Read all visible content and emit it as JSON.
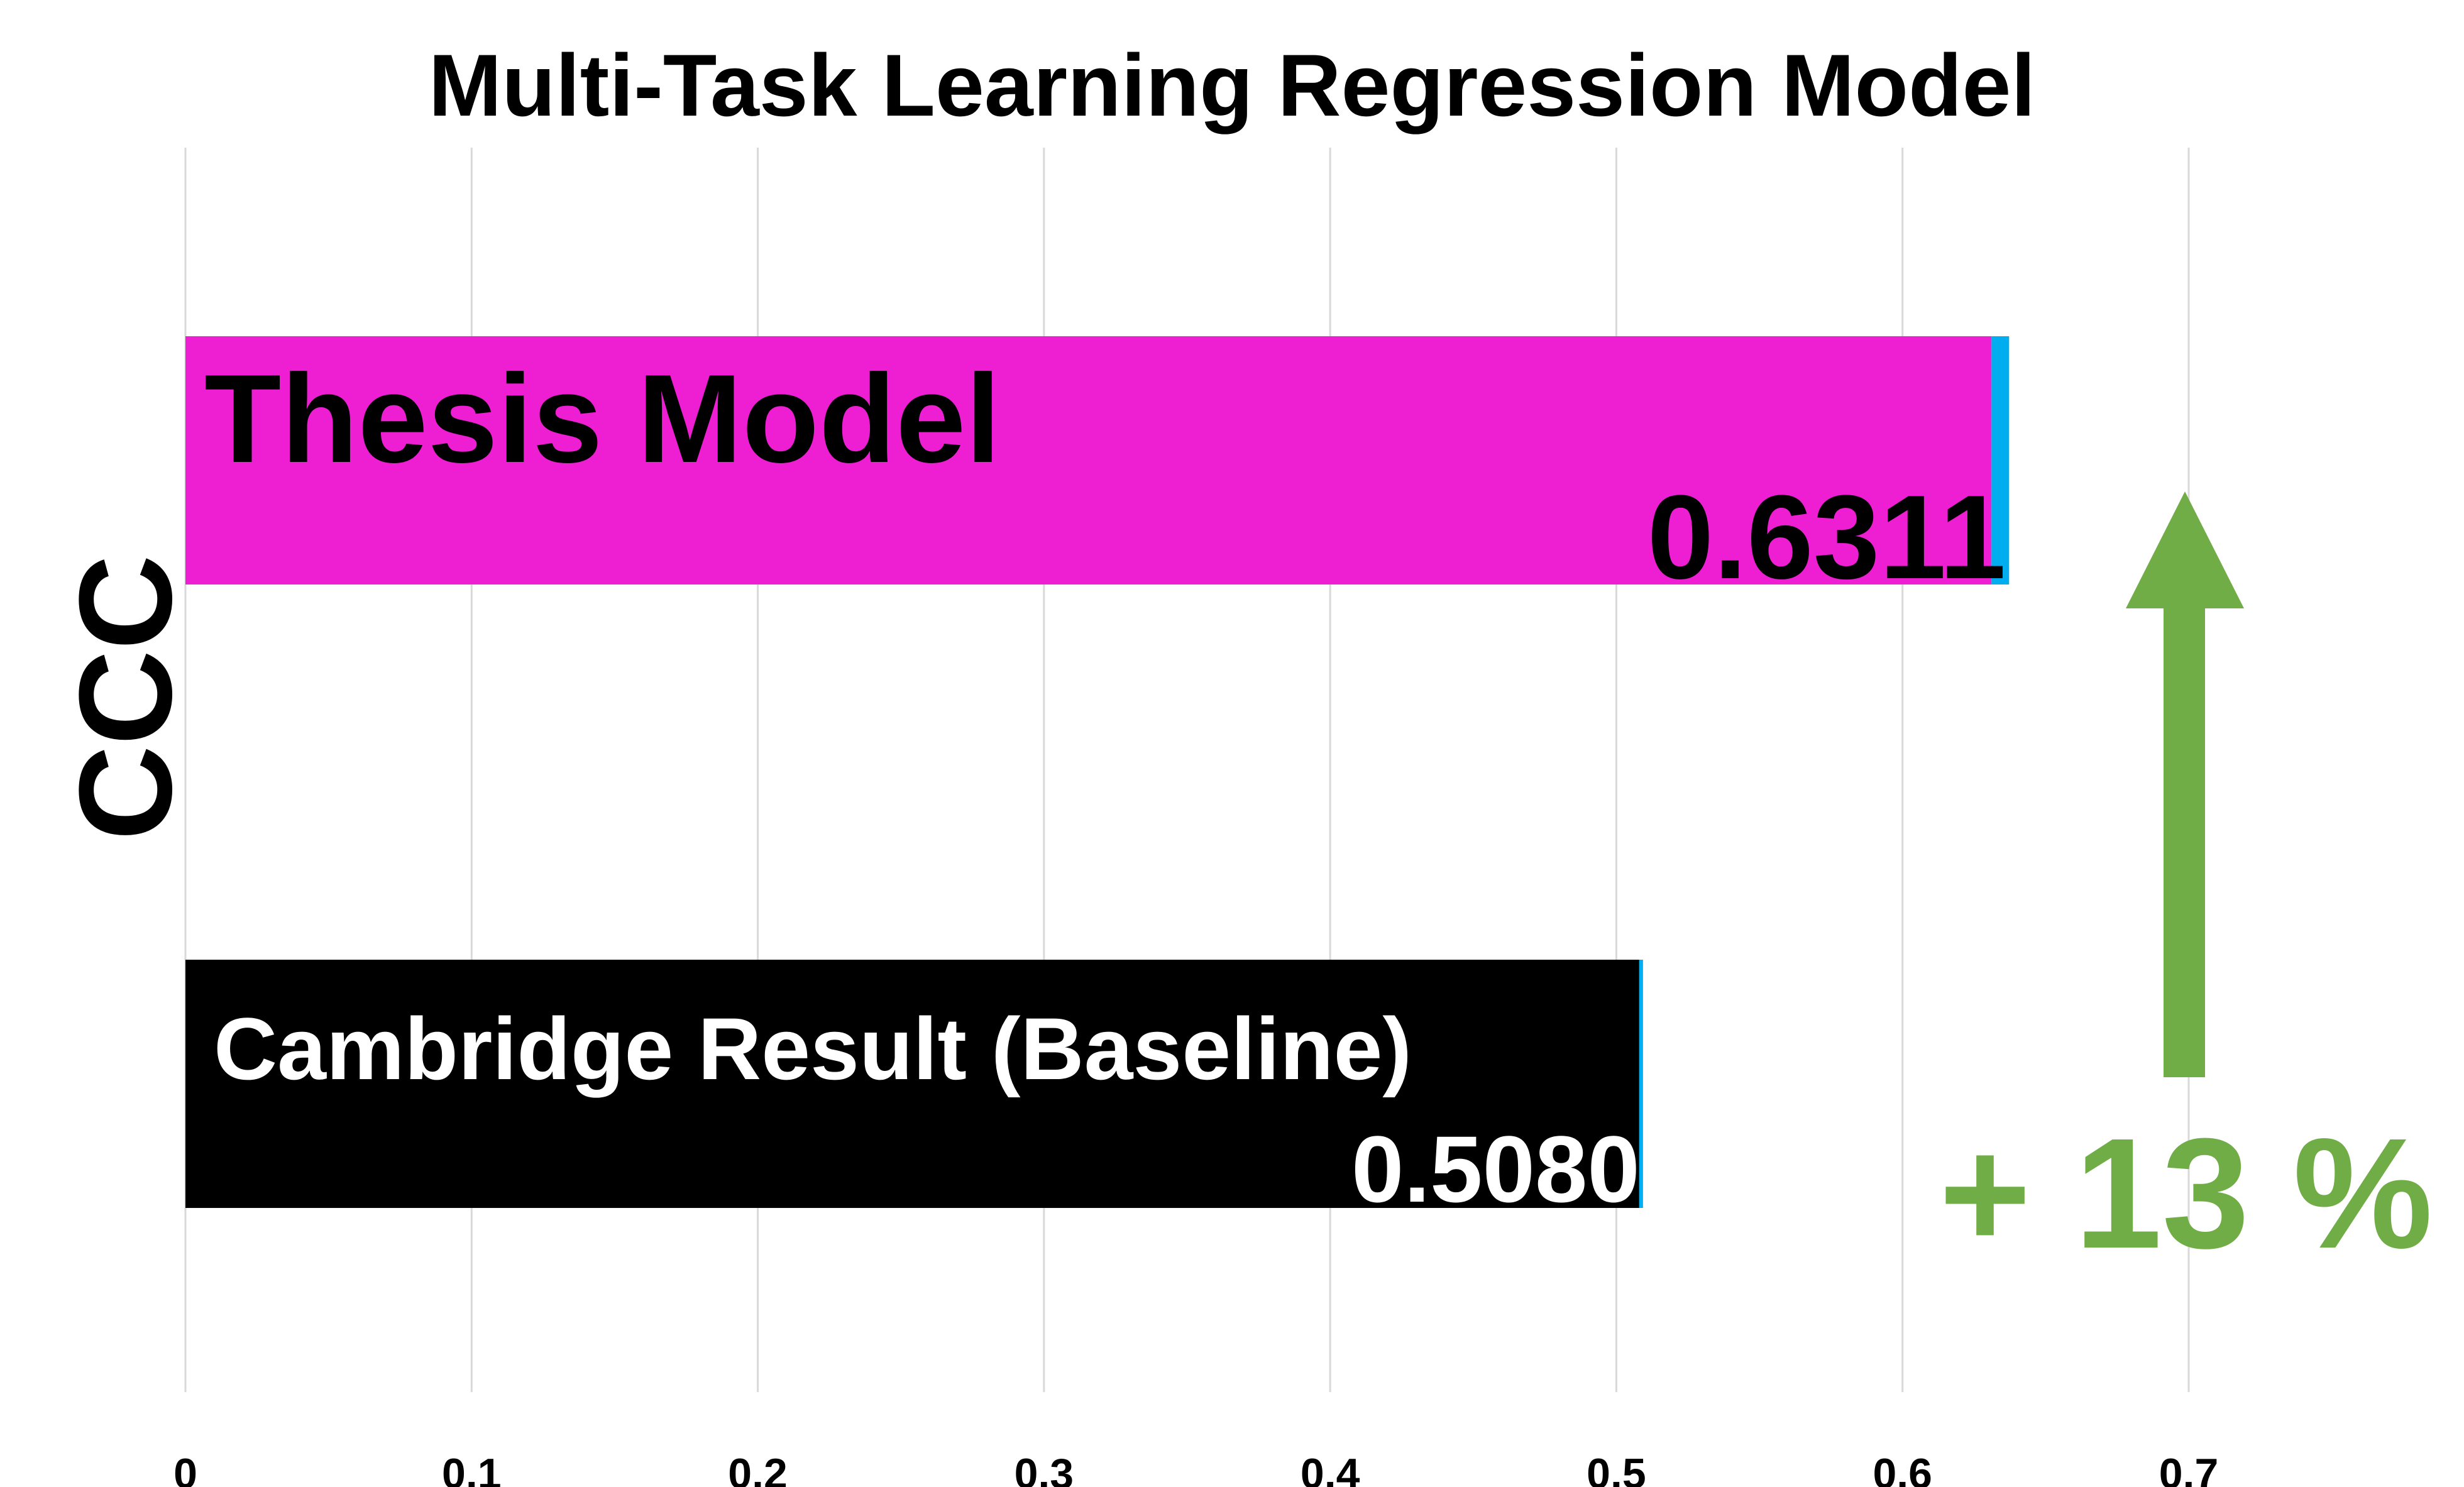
{
  "chart_data": {
    "type": "bar",
    "orientation": "horizontal",
    "title": "Multi-Task Learning Regression Model",
    "ylabel": "CCC",
    "xlabel": "",
    "xlim": [
      0,
      0.7
    ],
    "xticks": [
      "0",
      "0.1",
      "0.2",
      "0.3",
      "0.4",
      "0.5",
      "0.6",
      "0.7"
    ],
    "grid": "vertical",
    "categories": [
      "Thesis Model",
      "Cambridge Result (Baseline)"
    ],
    "values": [
      0.6311,
      0.508
    ],
    "value_labels": [
      "0.6311",
      "0.5080"
    ],
    "bar_colors": [
      "#ee1ed2",
      "#000000"
    ],
    "label_colors": [
      "#000000",
      "#ffffff"
    ],
    "error_bar_color": "#00aeef",
    "annotation": {
      "text": "+ 13 %",
      "color": "#70ad47",
      "arrow": "up"
    }
  }
}
